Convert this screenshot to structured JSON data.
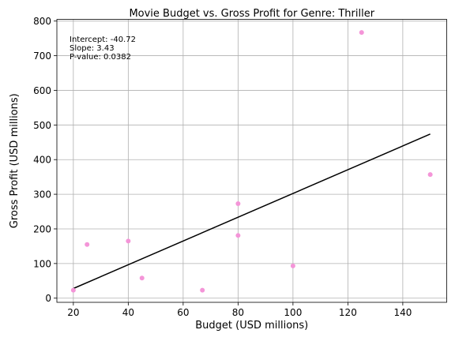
{
  "chart_data": {
    "type": "scatter",
    "title": "Movie Budget vs. Gross Profit for Genre: Thriller",
    "xlabel": "Budget (USD millions)",
    "ylabel": "Gross Profit (USD millions)",
    "xlim": [
      14,
      156
    ],
    "ylim": [
      -12,
      805
    ],
    "xticks": [
      20,
      40,
      60,
      80,
      100,
      120,
      140
    ],
    "yticks": [
      0,
      100,
      200,
      300,
      400,
      500,
      600,
      700,
      800
    ],
    "grid": true,
    "points": [
      {
        "x": 20,
        "y": 23
      },
      {
        "x": 25,
        "y": 155
      },
      {
        "x": 40,
        "y": 165
      },
      {
        "x": 45,
        "y": 58
      },
      {
        "x": 67,
        "y": 23
      },
      {
        "x": 80,
        "y": 273
      },
      {
        "x": 80,
        "y": 181
      },
      {
        "x": 100,
        "y": 93
      },
      {
        "x": 125,
        "y": 767
      },
      {
        "x": 150,
        "y": 357
      }
    ],
    "regression": {
      "intercept": -40.72,
      "slope": 3.43,
      "x_range": [
        20,
        150
      ]
    },
    "annotations": [
      "Intercept: -40.72",
      "Slope: 3.43",
      "P-value: 0.0382"
    ],
    "point_color": "#f495d8",
    "line_color": "#000000"
  }
}
